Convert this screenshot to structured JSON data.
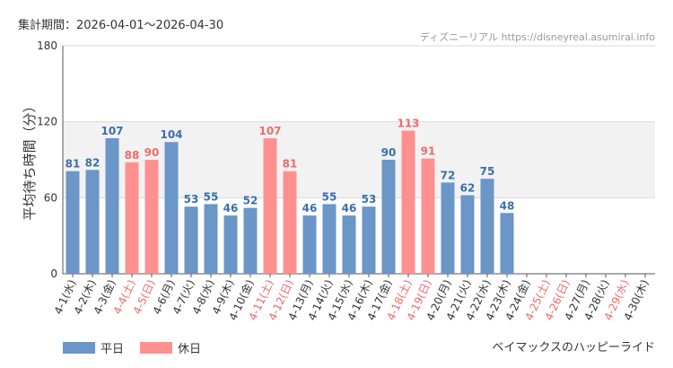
{
  "header": {
    "period": "集計期間：2026-04-01～2026-04-30",
    "source": "ディズニーリアル https://disneyreal.asumirai.info"
  },
  "legend": {
    "weekday_label": "平日",
    "holiday_label": "休日"
  },
  "footer": {
    "attraction": "ベイマックスのハッピーライド"
  },
  "colors": {
    "weekday": "#6a96c8",
    "holiday": "#ff9090",
    "weekday_text": "#3a6fae",
    "holiday_text": "#ee6a6a",
    "axis_text": "#333333",
    "band": "#f2f2f2"
  },
  "chart_data": {
    "type": "bar",
    "ylabel": "平均待ち時間（分）",
    "xlabel": "",
    "ylim": [
      0,
      180
    ],
    "yticks": [
      0,
      60,
      120,
      180
    ],
    "categories": [
      "4-1(水)",
      "4-2(木)",
      "4-3(金)",
      "4-4(土)",
      "4-5(日)",
      "4-6(月)",
      "4-7(火)",
      "4-8(水)",
      "4-9(木)",
      "4-10(金)",
      "4-11(土)",
      "4-12(日)",
      "4-13(月)",
      "4-14(火)",
      "4-15(水)",
      "4-16(木)",
      "4-17(金)",
      "4-18(土)",
      "4-19(日)",
      "4-20(月)",
      "4-21(火)",
      "4-22(水)",
      "4-23(木)",
      "4-24(金)",
      "4-25(土)",
      "4-26(日)",
      "4-27(月)",
      "4-28(火)",
      "4-29(水)",
      "4-30(木)"
    ],
    "values": [
      81,
      82,
      107,
      88,
      90,
      104,
      53,
      55,
      46,
      52,
      107,
      81,
      46,
      55,
      46,
      53,
      90,
      113,
      91,
      72,
      62,
      75,
      48,
      null,
      null,
      null,
      null,
      null,
      null,
      null
    ],
    "holiday": [
      false,
      false,
      false,
      true,
      true,
      false,
      false,
      false,
      false,
      false,
      true,
      true,
      false,
      false,
      false,
      false,
      false,
      true,
      true,
      false,
      false,
      false,
      false,
      false,
      true,
      true,
      false,
      false,
      true,
      false
    ],
    "series": [
      {
        "name": "平日",
        "values": [
          81,
          82,
          107,
          null,
          null,
          104,
          53,
          55,
          46,
          52,
          null,
          null,
          46,
          55,
          46,
          53,
          90,
          null,
          null,
          72,
          62,
          75,
          48,
          null,
          null,
          null,
          null,
          null,
          null,
          null
        ]
      },
      {
        "name": "休日",
        "values": [
          null,
          null,
          null,
          88,
          90,
          null,
          null,
          null,
          null,
          null,
          107,
          81,
          null,
          null,
          null,
          null,
          null,
          113,
          91,
          null,
          null,
          null,
          null,
          null,
          null,
          null,
          null,
          null,
          null,
          null
        ]
      }
    ]
  }
}
